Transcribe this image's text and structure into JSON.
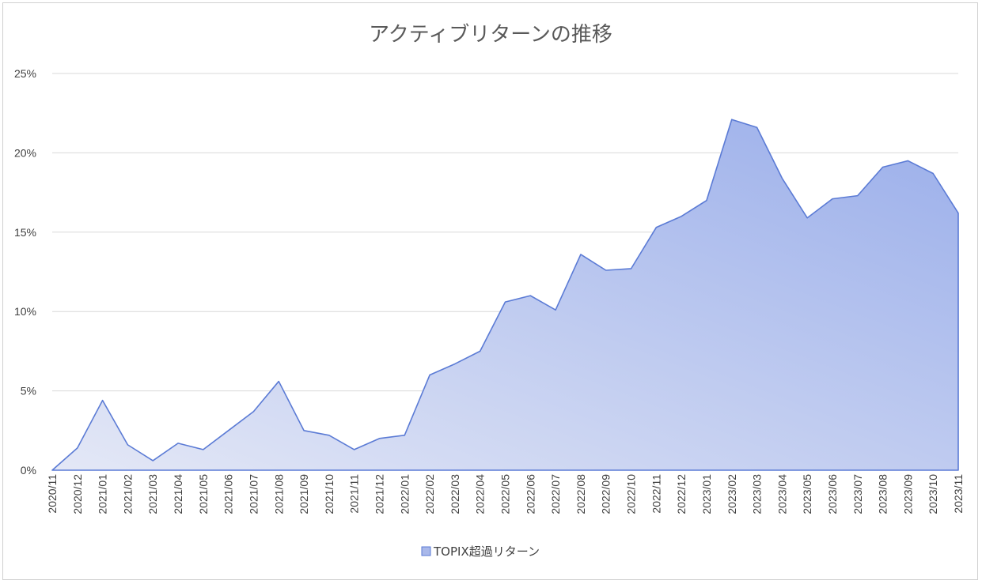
{
  "chart_data": {
    "type": "area",
    "title": "アクティブリターンの推移",
    "x": [
      "2020/11",
      "2020/12",
      "2021/01",
      "2021/02",
      "2021/03",
      "2021/04",
      "2021/05",
      "2021/06",
      "2021/07",
      "2021/08",
      "2021/09",
      "2021/10",
      "2021/11",
      "2021/12",
      "2022/01",
      "2022/02",
      "2022/03",
      "2022/04",
      "2022/05",
      "2022/06",
      "2022/07",
      "2022/08",
      "2022/09",
      "2022/10",
      "2022/11",
      "2022/12",
      "2023/01",
      "2023/02",
      "2023/03",
      "2023/04",
      "2023/05",
      "2023/06",
      "2023/07",
      "2023/08",
      "2023/09",
      "2023/10",
      "2023/11"
    ],
    "series": [
      {
        "name": "TOPIX超過リターン",
        "values": [
          0.0,
          1.4,
          4.4,
          1.6,
          0.6,
          1.7,
          1.3,
          2.5,
          3.7,
          5.6,
          2.5,
          2.2,
          1.3,
          2.0,
          2.2,
          6.0,
          6.7,
          7.5,
          10.6,
          11.0,
          10.1,
          13.6,
          12.6,
          12.7,
          15.3,
          16.0,
          17.0,
          22.1,
          21.6,
          18.4,
          15.9,
          17.1,
          17.3,
          19.1,
          19.5,
          18.7,
          16.2
        ]
      }
    ],
    "y_ticks": [
      "0%",
      "5%",
      "10%",
      "15%",
      "20%",
      "25%"
    ],
    "ylim": [
      0,
      25
    ],
    "grid": true,
    "legend_position": "bottom",
    "colors": {
      "line": "#5b7bd5",
      "fill_start": "#e4e8f6",
      "fill_end": "#9aaeea",
      "grid": "#d9d9d9",
      "legend_swatch": "#a9b8ea"
    }
  }
}
